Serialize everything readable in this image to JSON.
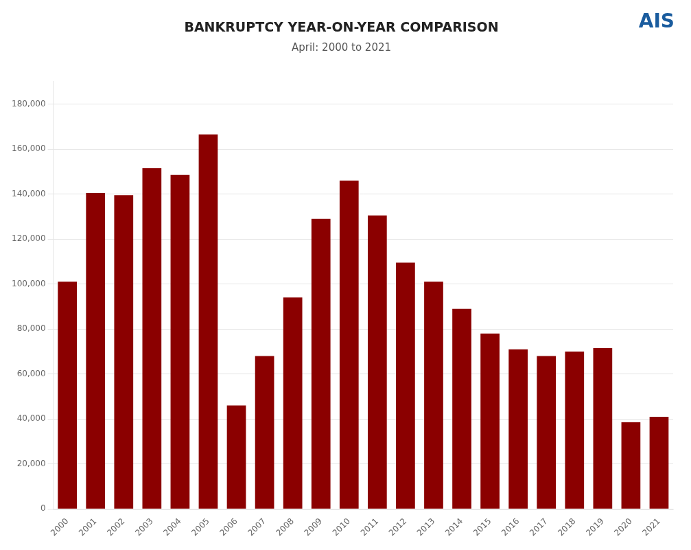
{
  "chart_data": {
    "type": "bar",
    "title": "BANKRUPTCY YEAR-ON-YEAR COMPARISON",
    "subtitle": "April: 2000 to 2021",
    "annotations": [
      "AIS"
    ],
    "categories": [
      "2000",
      "2001",
      "2002",
      "2003",
      "2004",
      "2005",
      "2006",
      "2007",
      "2008",
      "2009",
      "2010",
      "2011",
      "2012",
      "2013",
      "2014",
      "2015",
      "2016",
      "2017",
      "2018",
      "2019",
      "2020",
      "2021"
    ],
    "values": [
      101000,
      140500,
      139500,
      151500,
      148500,
      166500,
      46000,
      68000,
      94000,
      129000,
      146000,
      130500,
      109500,
      101000,
      89000,
      78000,
      71000,
      68000,
      70000,
      71500,
      38500,
      41000
    ],
    "color": "#8B0000",
    "ylim": [
      0,
      190000
    ],
    "yticks": [
      0,
      {
        "value": 20000,
        "label": "20,000"
      },
      {
        "value": 40000,
        "label": "40,000"
      },
      {
        "value": 60000,
        "label": "60,000"
      },
      {
        "value": 80000,
        "label": "80,000"
      },
      {
        "value": 100000,
        "label": "100,000"
      },
      {
        "value": 120000,
        "label": "120,000"
      },
      {
        "value": 140000,
        "label": "140,000"
      },
      {
        "value": 160000,
        "label": "160,000"
      },
      {
        "value": 180000,
        "label": "180,000"
      }
    ],
    "grid": true
  }
}
